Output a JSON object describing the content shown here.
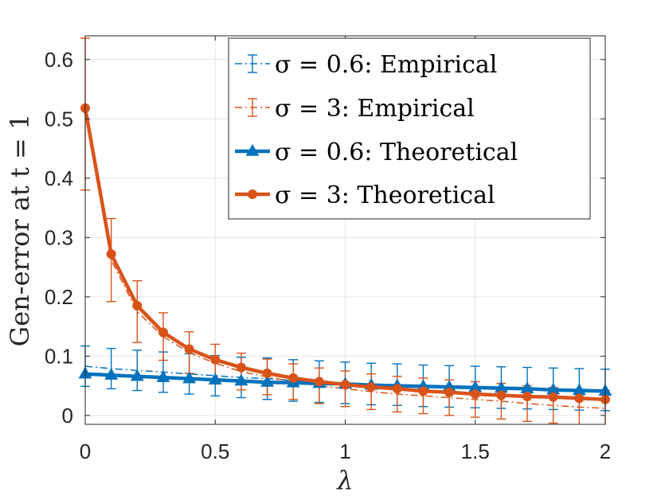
{
  "chart_data": {
    "type": "line",
    "title": "",
    "xlabel": "λ",
    "ylabel": "Gen-error at t = 1",
    "xlim": [
      0,
      2
    ],
    "ylim": [
      -0.015,
      0.64
    ],
    "xticks": [
      0,
      0.5,
      1,
      1.5,
      2
    ],
    "xtick_labels": [
      "0",
      "0.5",
      "1",
      "1.5",
      "2"
    ],
    "yticks": [
      0,
      0.1,
      0.2,
      0.3,
      0.4,
      0.5,
      0.6
    ],
    "ytick_labels": [
      "0",
      "0.1",
      "0.2",
      "0.3",
      "0.4",
      "0.5",
      "0.6"
    ],
    "grid": true,
    "legend_position": "top-right",
    "x": [
      0,
      0.1,
      0.2,
      0.3,
      0.4,
      0.5,
      0.6,
      0.7,
      0.8,
      0.9,
      1.0,
      1.1,
      1.2,
      1.3,
      1.4,
      1.5,
      1.6,
      1.7,
      1.8,
      1.9,
      2.0
    ],
    "series": [
      {
        "name": "σ = 0.6:  Empirical",
        "color": "#0072BD",
        "style": "dashdot-errorbar",
        "values": [
          0.083,
          0.079,
          0.076,
          0.073,
          0.07,
          0.067,
          0.064,
          0.062,
          0.059,
          0.057,
          0.055,
          0.053,
          0.052,
          0.05,
          0.049,
          0.048,
          0.047,
          0.046,
          0.045,
          0.044,
          0.043
        ],
        "errors": [
          0.034,
          0.034,
          0.034,
          0.034,
          0.034,
          0.034,
          0.034,
          0.035,
          0.035,
          0.035,
          0.035,
          0.035,
          0.035,
          0.035,
          0.035,
          0.035,
          0.035,
          0.035,
          0.035,
          0.035,
          0.035
        ]
      },
      {
        "name": "σ = 3:  Empirical",
        "color": "#D95319",
        "style": "dashdot-errorbar",
        "values": [
          0.508,
          0.262,
          0.175,
          0.133,
          0.106,
          0.088,
          0.074,
          0.065,
          0.057,
          0.05,
          0.045,
          0.04,
          0.036,
          0.033,
          0.03,
          0.027,
          0.024,
          0.02,
          0.017,
          0.014,
          0.012
        ],
        "errors": [
          0.128,
          0.07,
          0.052,
          0.04,
          0.035,
          0.032,
          0.031,
          0.03,
          0.03,
          0.03,
          0.03,
          0.03,
          0.03,
          0.03,
          0.03,
          0.03,
          0.03,
          0.03,
          0.03,
          0.03,
          0.03
        ]
      },
      {
        "name": "σ = 0.6:  Theoretical",
        "color": "#0072BD",
        "style": "solid-triangle",
        "values": [
          0.07,
          0.068,
          0.066,
          0.064,
          0.062,
          0.06,
          0.058,
          0.056,
          0.055,
          0.054,
          0.053,
          0.051,
          0.05,
          0.049,
          0.048,
          0.047,
          0.046,
          0.045,
          0.043,
          0.042,
          0.041
        ]
      },
      {
        "name": "σ = 3:  Theoretical",
        "color": "#D95319",
        "style": "solid-circle",
        "values": [
          0.518,
          0.272,
          0.185,
          0.14,
          0.112,
          0.094,
          0.081,
          0.071,
          0.063,
          0.057,
          0.052,
          0.048,
          0.045,
          0.041,
          0.039,
          0.036,
          0.034,
          0.032,
          0.031,
          0.029,
          0.027
        ]
      }
    ]
  }
}
